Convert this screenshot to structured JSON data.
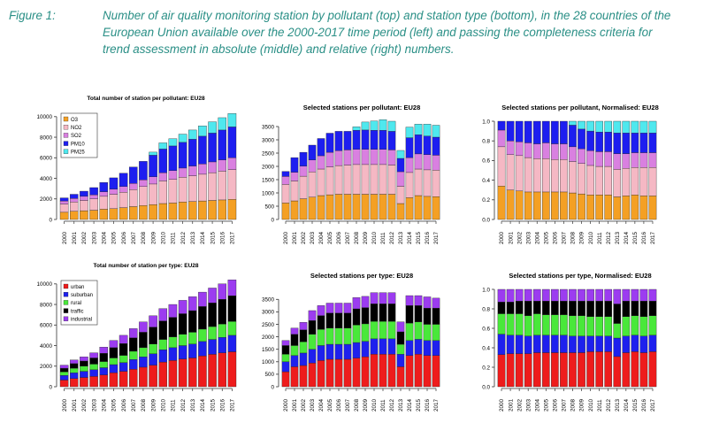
{
  "caption": {
    "label": "Figure 1:",
    "text": "Number of air quality monitoring station by pollutant (top) and station type (bottom), in the 28 countries of the European Union available over the 2000-2017 time period (left) and passing the completeness criteria for trend assessment in absolute (middle) and relative (right) numbers."
  },
  "colors": {
    "O3": "#f4a024",
    "NO2": "#f5b8c4",
    "SO2": "#d980e0",
    "PM10": "#1d1ef0",
    "PM25": "#4fe8ee",
    "urban": "#ee1c1c",
    "suburban": "#1e20ee",
    "rural": "#49e83a",
    "traffic": "#000000",
    "industrial": "#9c3cf0"
  },
  "chart_data": [
    {
      "id": "pollutant-total",
      "type": "bar",
      "stacked": true,
      "title": "Total number of station per pollutant: EU28",
      "categories": [
        "2000",
        "2001",
        "2002",
        "2003",
        "2004",
        "2005",
        "2006",
        "2007",
        "2008",
        "2009",
        "2010",
        "2011",
        "2012",
        "2013",
        "2014",
        "2015",
        "2016",
        "2017"
      ],
      "ylim": [
        0,
        10500
      ],
      "yticks": [
        0,
        2000,
        4000,
        6000,
        8000,
        10000
      ],
      "legend": "top-left",
      "series": [
        {
          "name": "O3",
          "color_key": "O3",
          "values": [
            700,
            800,
            850,
            900,
            1000,
            1050,
            1150,
            1250,
            1350,
            1450,
            1550,
            1600,
            1700,
            1750,
            1800,
            1850,
            1900,
            1950
          ]
        },
        {
          "name": "NO2",
          "color_key": "NO2",
          "values": [
            800,
            900,
            1000,
            1100,
            1250,
            1400,
            1500,
            1650,
            1850,
            2000,
            2200,
            2300,
            2400,
            2500,
            2600,
            2700,
            2800,
            2900
          ]
        },
        {
          "name": "SO2",
          "color_key": "SO2",
          "values": [
            300,
            350,
            400,
            400,
            450,
            500,
            550,
            600,
            650,
            700,
            800,
            850,
            900,
            950,
            1000,
            1050,
            1100,
            1150
          ]
        },
        {
          "name": "PM10",
          "color_key": "PM10",
          "values": [
            300,
            400,
            500,
            700,
            900,
            1100,
            1300,
            1600,
            1800,
            2100,
            2300,
            2400,
            2500,
            2600,
            2700,
            2800,
            2900,
            3000
          ]
        },
        {
          "name": "PM25",
          "color_key": "PM25",
          "values": [
            0,
            0,
            0,
            0,
            0,
            0,
            0,
            0,
            0,
            300,
            600,
            700,
            800,
            900,
            1000,
            1100,
            1200,
            1300
          ]
        }
      ]
    },
    {
      "id": "pollutant-selected",
      "type": "bar",
      "stacked": true,
      "title": "Selected stations per pollutant: EU28",
      "categories": [
        "2000",
        "2001",
        "2002",
        "2003",
        "2004",
        "2005",
        "2006",
        "2007",
        "2008",
        "2009",
        "2010",
        "2011",
        "2012",
        "2013",
        "2014",
        "2015",
        "2016",
        "2017"
      ],
      "ylim": [
        0,
        3700
      ],
      "yticks": [
        0,
        500,
        1000,
        1500,
        2000,
        2500,
        3000,
        3500
      ],
      "series": [
        {
          "name": "O3",
          "color_key": "O3",
          "values": [
            620,
            700,
            780,
            840,
            900,
            930,
            950,
            950,
            950,
            950,
            950,
            950,
            950,
            600,
            820,
            900,
            870,
            860
          ]
        },
        {
          "name": "NO2",
          "color_key": "NO2",
          "values": [
            700,
            750,
            850,
            950,
            1000,
            1050,
            1080,
            1100,
            1120,
            1120,
            1120,
            1120,
            1100,
            650,
            950,
            1000,
            1000,
            1000
          ]
        },
        {
          "name": "SO2",
          "color_key": "SO2",
          "values": [
            300,
            330,
            380,
            450,
            500,
            550,
            560,
            570,
            570,
            570,
            570,
            570,
            570,
            550,
            560,
            570,
            570,
            560
          ]
        },
        {
          "name": "PM10",
          "color_key": "PM10",
          "values": [
            190,
            550,
            520,
            560,
            650,
            720,
            730,
            700,
            720,
            730,
            720,
            720,
            700,
            500,
            750,
            720,
            700,
            680
          ]
        },
        {
          "name": "PM25",
          "color_key": "PM25",
          "values": [
            0,
            0,
            0,
            0,
            0,
            0,
            0,
            0,
            130,
            300,
            350,
            400,
            380,
            300,
            400,
            400,
            450,
            450
          ]
        }
      ]
    },
    {
      "id": "pollutant-normalised",
      "type": "bar",
      "stacked": true,
      "title": "Selected stations per pollutant, Normalised: EU28",
      "categories": [
        "2000",
        "2001",
        "2002",
        "2003",
        "2004",
        "2005",
        "2006",
        "2007",
        "2008",
        "2009",
        "2010",
        "2011",
        "2012",
        "2013",
        "2014",
        "2015",
        "2016",
        "2017"
      ],
      "ylim": [
        0,
        1.0
      ],
      "yticks": [
        "0.0",
        "0.2",
        "0.4",
        "0.6",
        "0.8",
        "1.0"
      ],
      "series": [
        {
          "name": "O3",
          "color_key": "O3",
          "values": [
            0.34,
            0.3,
            0.29,
            0.28,
            0.28,
            0.28,
            0.28,
            0.28,
            0.27,
            0.26,
            0.25,
            0.25,
            0.25,
            0.23,
            0.24,
            0.25,
            0.24,
            0.24
          ]
        },
        {
          "name": "NO2",
          "color_key": "NO2",
          "values": [
            0.4,
            0.36,
            0.36,
            0.35,
            0.34,
            0.34,
            0.33,
            0.33,
            0.32,
            0.31,
            0.3,
            0.29,
            0.29,
            0.28,
            0.28,
            0.28,
            0.29,
            0.29
          ]
        },
        {
          "name": "SO2",
          "color_key": "SO2",
          "values": [
            0.17,
            0.14,
            0.14,
            0.15,
            0.15,
            0.16,
            0.16,
            0.16,
            0.15,
            0.15,
            0.15,
            0.15,
            0.15,
            0.16,
            0.15,
            0.15,
            0.15,
            0.15
          ]
        },
        {
          "name": "PM10",
          "color_key": "PM10",
          "values": [
            0.09,
            0.2,
            0.21,
            0.22,
            0.23,
            0.22,
            0.23,
            0.23,
            0.22,
            0.2,
            0.2,
            0.2,
            0.2,
            0.21,
            0.21,
            0.2,
            0.2,
            0.2
          ]
        },
        {
          "name": "PM25",
          "color_key": "PM25",
          "values": [
            0,
            0,
            0,
            0,
            0,
            0,
            0,
            0,
            0.04,
            0.08,
            0.1,
            0.11,
            0.11,
            0.12,
            0.12,
            0.12,
            0.12,
            0.12
          ]
        }
      ]
    },
    {
      "id": "type-total",
      "type": "bar",
      "stacked": true,
      "title": "Total number of station per type: EU28",
      "categories": [
        "2000",
        "2001",
        "2002",
        "2003",
        "2004",
        "2005",
        "2006",
        "2007",
        "2008",
        "2009",
        "2010",
        "2011",
        "2012",
        "2013",
        "2014",
        "2015",
        "2016",
        "2017"
      ],
      "ylim": [
        0,
        10500
      ],
      "yticks": [
        0,
        2000,
        4000,
        6000,
        8000,
        10000
      ],
      "legend": "top-left",
      "series": [
        {
          "name": "urban",
          "color_key": "urban",
          "values": [
            650,
            800,
            900,
            1000,
            1150,
            1350,
            1500,
            1700,
            1900,
            2100,
            2400,
            2550,
            2700,
            2800,
            3000,
            3150,
            3300,
            3400
          ]
        },
        {
          "name": "suburban",
          "color_key": "suburban",
          "values": [
            450,
            550,
            600,
            650,
            700,
            800,
            850,
            950,
            1000,
            1100,
            1200,
            1250,
            1300,
            1350,
            1400,
            1450,
            1500,
            1600
          ]
        },
        {
          "name": "rural",
          "color_key": "rural",
          "values": [
            350,
            450,
            500,
            550,
            600,
            650,
            700,
            800,
            900,
            950,
            1000,
            1050,
            1100,
            1150,
            1200,
            1250,
            1300,
            1350
          ]
        },
        {
          "name": "traffic",
          "color_key": "traffic",
          "values": [
            350,
            450,
            500,
            600,
            800,
            1000,
            1150,
            1300,
            1500,
            1650,
            1800,
            1900,
            2000,
            2100,
            2200,
            2300,
            2400,
            2500
          ]
        },
        {
          "name": "industrial",
          "color_key": "industrial",
          "values": [
            300,
            350,
            400,
            500,
            600,
            700,
            800,
            900,
            1000,
            1100,
            1200,
            1250,
            1300,
            1350,
            1400,
            1450,
            1500,
            1550
          ]
        }
      ]
    },
    {
      "id": "type-selected",
      "type": "bar",
      "stacked": true,
      "title": "Selected stations per type: EU28",
      "categories": [
        "2000",
        "2001",
        "2002",
        "2003",
        "2004",
        "2005",
        "2006",
        "2007",
        "2008",
        "2009",
        "2010",
        "2011",
        "2012",
        "2013",
        "2014",
        "2015",
        "2016",
        "2017"
      ],
      "ylim": [
        0,
        3900
      ],
      "yticks": [
        0,
        500,
        1000,
        1500,
        2000,
        2500,
        3000,
        3500
      ],
      "series": [
        {
          "name": "urban",
          "color_key": "urban",
          "values": [
            600,
            800,
            850,
            950,
            1050,
            1100,
            1100,
            1100,
            1150,
            1200,
            1300,
            1300,
            1300,
            800,
            1250,
            1300,
            1250,
            1250
          ]
        },
        {
          "name": "suburban",
          "color_key": "suburban",
          "values": [
            400,
            450,
            500,
            550,
            600,
            600,
            600,
            600,
            620,
            620,
            620,
            620,
            620,
            500,
            600,
            600,
            600,
            600
          ]
        },
        {
          "name": "rural",
          "color_key": "rural",
          "values": [
            300,
            400,
            450,
            600,
            650,
            650,
            650,
            650,
            700,
            700,
            700,
            700,
            700,
            400,
            700,
            700,
            650,
            650
          ]
        },
        {
          "name": "traffic",
          "color_key": "traffic",
          "values": [
            350,
            450,
            480,
            550,
            550,
            600,
            600,
            600,
            650,
            650,
            700,
            700,
            700,
            500,
            700,
            650,
            650,
            650
          ]
        },
        {
          "name": "industrial",
          "color_key": "industrial",
          "values": [
            200,
            250,
            300,
            400,
            400,
            400,
            400,
            400,
            450,
            450,
            450,
            450,
            450,
            400,
            400,
            400,
            450,
            400
          ]
        }
      ]
    },
    {
      "id": "type-normalised",
      "type": "bar",
      "stacked": true,
      "title": "Selected stations per type, Normalised: EU28",
      "categories": [
        "2000",
        "2001",
        "2002",
        "2003",
        "2004",
        "2005",
        "2006",
        "2007",
        "2008",
        "2009",
        "2010",
        "2011",
        "2012",
        "2013",
        "2014",
        "2015",
        "2016",
        "2017"
      ],
      "ylim": [
        0,
        1.0
      ],
      "yticks": [
        "0.0",
        "0.2",
        "0.4",
        "0.6",
        "0.8",
        "1.0"
      ],
      "series": [
        {
          "name": "urban",
          "color_key": "urban",
          "values": [
            0.33,
            0.34,
            0.34,
            0.34,
            0.35,
            0.35,
            0.35,
            0.35,
            0.35,
            0.35,
            0.36,
            0.36,
            0.36,
            0.31,
            0.35,
            0.36,
            0.35,
            0.36
          ]
        },
        {
          "name": "suburban",
          "color_key": "suburban",
          "values": [
            0.21,
            0.19,
            0.19,
            0.18,
            0.18,
            0.18,
            0.18,
            0.18,
            0.17,
            0.17,
            0.16,
            0.16,
            0.16,
            0.19,
            0.17,
            0.17,
            0.17,
            0.17
          ]
        },
        {
          "name": "rural",
          "color_key": "rural",
          "values": [
            0.21,
            0.22,
            0.22,
            0.21,
            0.22,
            0.21,
            0.21,
            0.21,
            0.21,
            0.21,
            0.2,
            0.2,
            0.2,
            0.15,
            0.2,
            0.2,
            0.2,
            0.2
          ]
        },
        {
          "name": "traffic",
          "color_key": "traffic",
          "values": [
            0.12,
            0.12,
            0.13,
            0.15,
            0.13,
            0.14,
            0.14,
            0.14,
            0.15,
            0.15,
            0.16,
            0.16,
            0.16,
            0.2,
            0.16,
            0.15,
            0.16,
            0.15
          ]
        },
        {
          "name": "industrial",
          "color_key": "industrial",
          "values": [
            0.13,
            0.13,
            0.12,
            0.12,
            0.12,
            0.12,
            0.12,
            0.12,
            0.12,
            0.12,
            0.12,
            0.12,
            0.12,
            0.15,
            0.12,
            0.12,
            0.12,
            0.12
          ]
        }
      ]
    }
  ]
}
